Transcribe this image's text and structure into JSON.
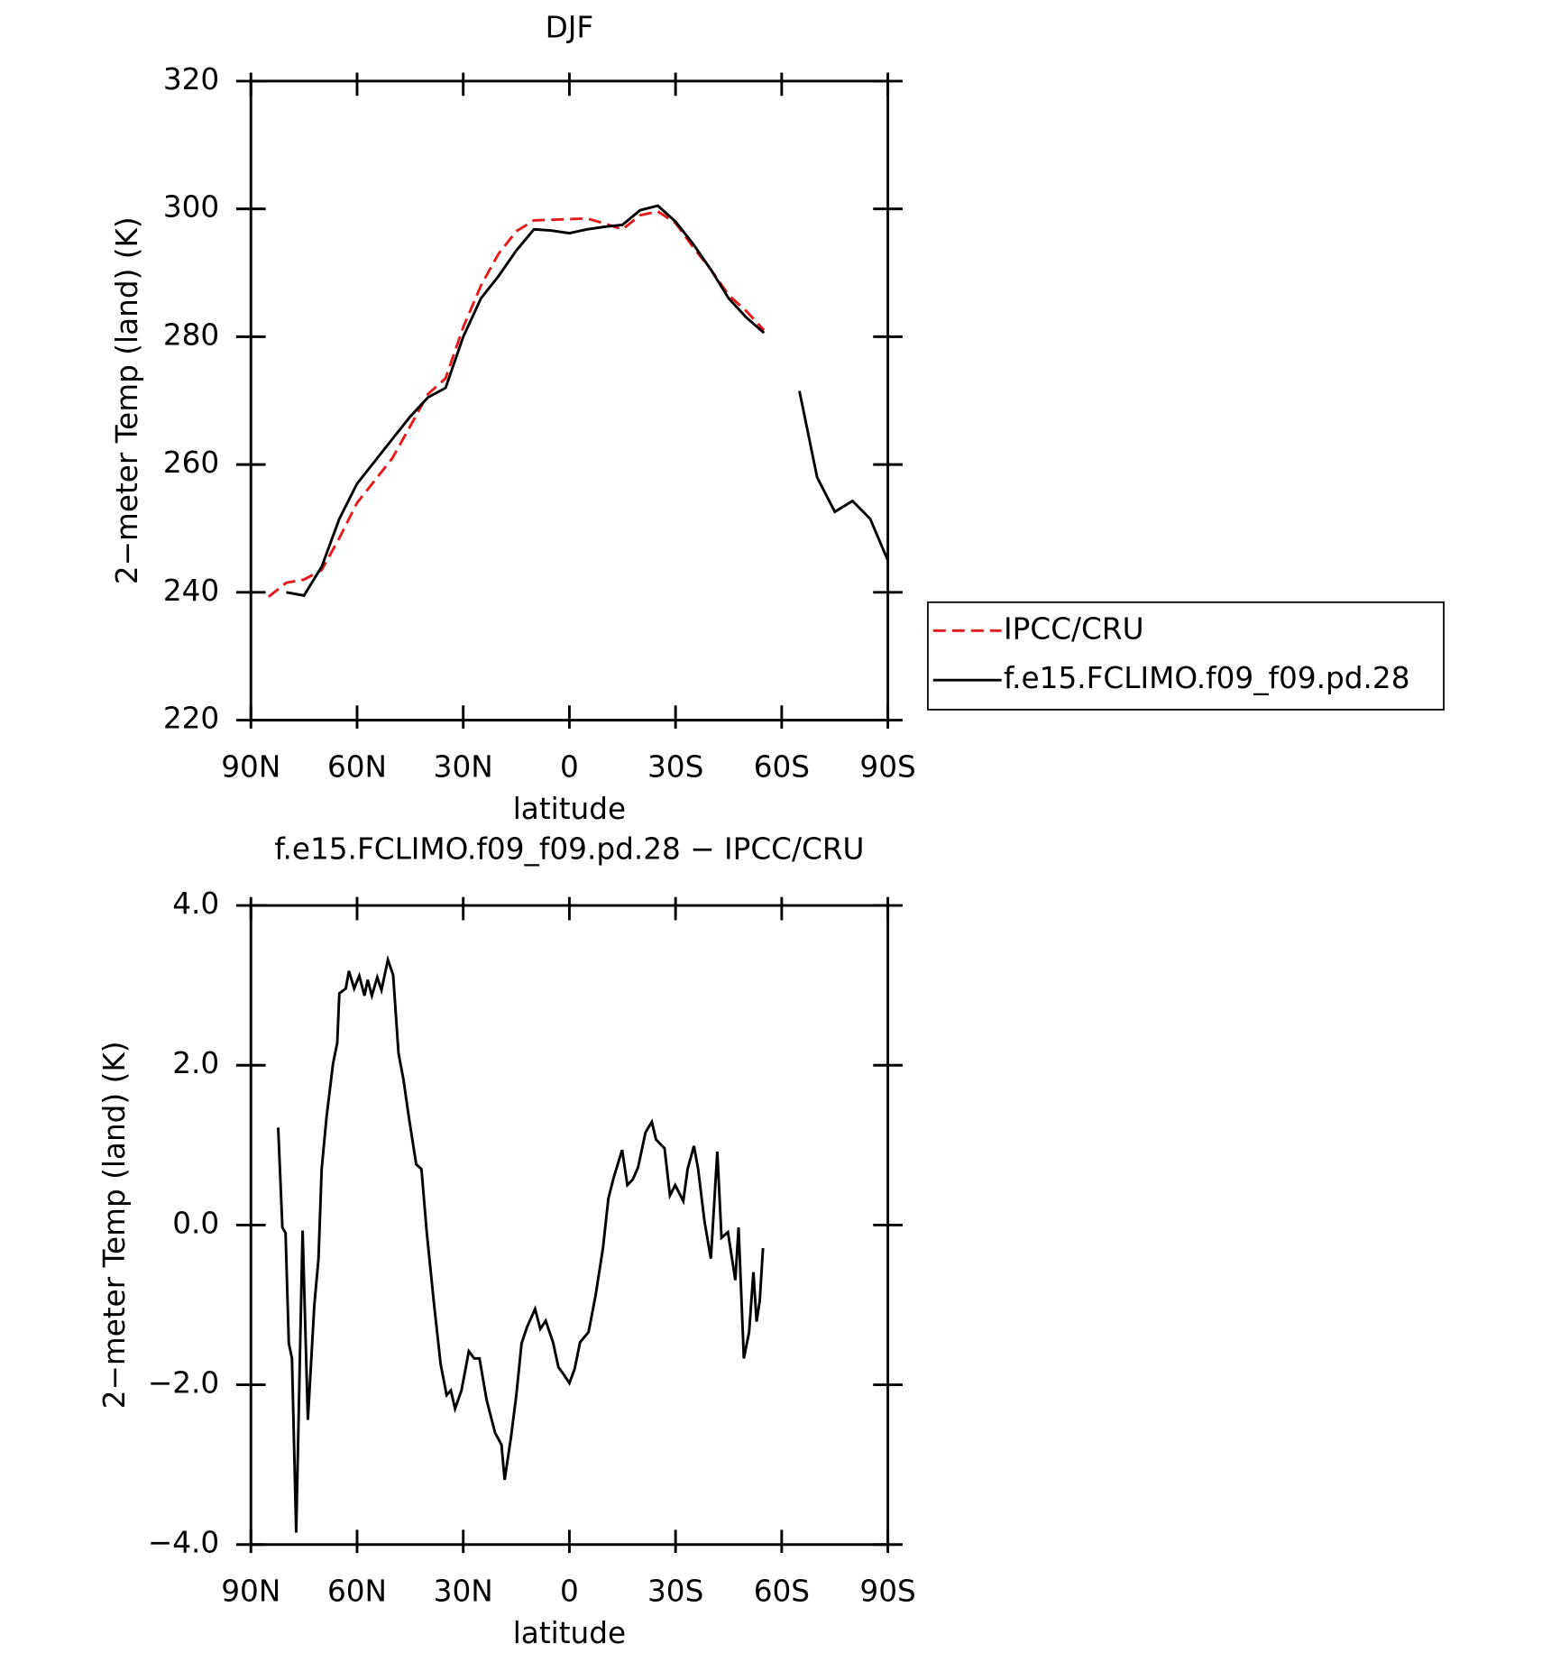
{
  "chart_data": [
    {
      "type": "line",
      "title": "DJF",
      "xlabel": "latitude",
      "ylabel": "2−meter Temp (land) (K)",
      "x": [
        85,
        80,
        75,
        70,
        65,
        60,
        55,
        50,
        45,
        40,
        35,
        30,
        25,
        20,
        15,
        10,
        5,
        0,
        -5,
        -10,
        -15,
        -20,
        -25,
        -30,
        -35,
        -40,
        -45,
        -50,
        -55,
        -60,
        -65,
        -70,
        -75,
        -80,
        -85,
        -90
      ],
      "series": [
        {
          "name": "IPCC/CRU",
          "color": "#e41a1c",
          "dashed": true,
          "values": [
            239.3,
            241.5,
            242,
            243.5,
            248.5,
            254,
            257.5,
            261,
            266,
            271,
            273.5,
            281.5,
            288,
            293,
            296.5,
            298.2,
            298.3,
            298.4,
            298.5,
            297.7,
            296.8,
            299,
            299.6,
            297.8,
            294,
            290.5,
            286.5,
            284,
            281,
            null,
            null,
            null,
            null,
            null,
            null,
            null
          ]
        },
        {
          "name": "f.e15.FCLIMO.f09_f09.pd.28",
          "color": "#000000",
          "dashed": false,
          "values": [
            null,
            240,
            239.5,
            244,
            251.5,
            257,
            260.5,
            264,
            267.5,
            270.5,
            272,
            280,
            286,
            289.5,
            293.5,
            296.8,
            296.6,
            296.2,
            296.8,
            297.2,
            297.5,
            299.8,
            300.5,
            298,
            294.5,
            290.5,
            286,
            283,
            280.6,
            null,
            271.5,
            258,
            252.6,
            254.3,
            251.5,
            245
          ]
        }
      ],
      "xlim": [
        90,
        -90
      ],
      "xticks": [
        {
          "value": 90,
          "label": "90N"
        },
        {
          "value": 60,
          "label": "60N"
        },
        {
          "value": 30,
          "label": "30N"
        },
        0,
        {
          "value": -30,
          "label": "30S"
        },
        {
          "value": -60,
          "label": "60S"
        },
        {
          "value": -90,
          "label": "90S"
        }
      ],
      "ylim": [
        220,
        320
      ],
      "yticks": [
        220,
        240,
        260,
        280,
        300,
        320
      ],
      "legend": "right",
      "grid": false
    },
    {
      "type": "line",
      "title": "f.e15.FCLIMO.f09_f09.pd.28 − IPCC/CRU",
      "xlabel": "latitude",
      "ylabel": "2−meter Temp (land) (K)",
      "x": [
        82.3,
        81.1,
        80.2,
        79.3,
        78.4,
        77.2,
        75.4,
        73.9,
        72.1,
        70.9,
        70,
        68.6,
        66.8,
        65.6,
        65,
        63.2,
        62.3,
        60.8,
        59.4,
        57.9,
        57,
        55.8,
        54.3,
        53.1,
        51.3,
        49.8,
        48.3,
        46.9,
        45.4,
        43.3,
        41.8,
        40.3,
        38.2,
        36.4,
        34.7,
        33.5,
        32.3,
        30.5,
        28.4,
        26.9,
        25.4,
        23.4,
        21,
        19.2,
        18.3,
        16.5,
        15,
        13.5,
        12,
        9.7,
        8.2,
        6.7,
        4.6,
        3.1,
        1.6,
        0,
        -1.5,
        -3,
        -5.4,
        -7.4,
        -9.5,
        -11,
        -12.5,
        -14.9,
        -16.4,
        -17.9,
        -19.4,
        -21.5,
        -23.3,
        -24.5,
        -26.9,
        -28.4,
        -29.9,
        -32.2,
        -33.4,
        -35.2,
        -36.4,
        -38.2,
        -40,
        -41.8,
        -43,
        -44.8,
        -46.9,
        -47.8,
        -49.3,
        -50.8,
        -52,
        -52.9,
        -53.8,
        -54.7
      ],
      "values": [
        1.22,
        -0.03,
        -0.1,
        -1.48,
        -1.67,
        -3.85,
        -0.07,
        -2.44,
        -1.01,
        -0.42,
        0.7,
        1.36,
        2.02,
        2.28,
        2.9,
        2.96,
        3.18,
        2.96,
        3.12,
        2.87,
        3.07,
        2.87,
        3.1,
        2.94,
        3.32,
        3.13,
        2.15,
        1.82,
        1.36,
        0.76,
        0.7,
        -0.09,
        -1.01,
        -1.74,
        -2.13,
        -2.07,
        -2.3,
        -2.07,
        -1.58,
        -1.67,
        -1.67,
        -2.19,
        -2.6,
        -2.75,
        -3.19,
        -2.66,
        -2.13,
        -1.48,
        -1.28,
        -1.05,
        -1.3,
        -1.2,
        -1.47,
        -1.78,
        -1.87,
        -1.98,
        -1.8,
        -1.47,
        -1.34,
        -0.88,
        -0.29,
        0.33,
        0.59,
        0.94,
        0.5,
        0.57,
        0.72,
        1.16,
        1.29,
        1.07,
        0.96,
        0.37,
        0.5,
        0.3,
        0.7,
        0.99,
        0.7,
        0.04,
        -0.42,
        0.92,
        -0.16,
        -0.09,
        -0.69,
        -0.03,
        -1.67,
        -1.34,
        -0.59,
        -1.21,
        -0.95,
        -0.29
      ],
      "color": "#000000",
      "xlim": [
        90,
        -90
      ],
      "xticks": [
        {
          "value": 90,
          "label": "90N"
        },
        {
          "value": 60,
          "label": "60N"
        },
        {
          "value": 30,
          "label": "30N"
        },
        0,
        {
          "value": -30,
          "label": "30S"
        },
        {
          "value": -60,
          "label": "60S"
        },
        {
          "value": -90,
          "label": "90S"
        }
      ],
      "ylim": [
        -4,
        4
      ],
      "yticks": [
        {
          "value": -4,
          "label": "−4.0"
        },
        {
          "value": -2,
          "label": "−2.0"
        },
        {
          "value": 0,
          "label": "0.0"
        },
        {
          "value": 2,
          "label": "2.0"
        },
        {
          "value": 4,
          "label": "4.0"
        }
      ],
      "grid": false
    }
  ]
}
